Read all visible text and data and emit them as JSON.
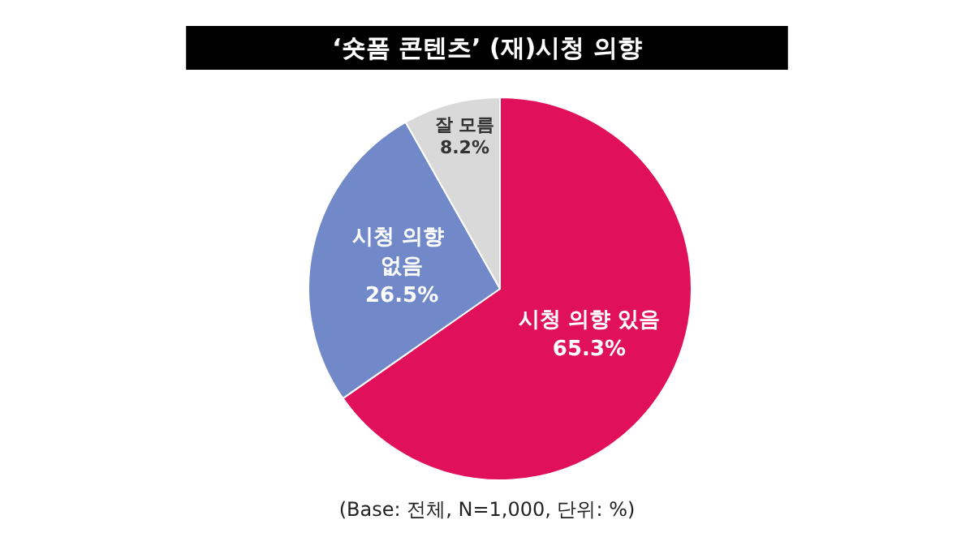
{
  "chart_data": {
    "type": "pie",
    "title": "‘숏폼 콘텐츠’ (재)시청 의향",
    "categories": [
      "시청 의향 있음",
      "시청 의향 없음",
      "잘 모름"
    ],
    "values": [
      65.3,
      26.5,
      8.2
    ],
    "colors": [
      "#e0105a",
      "#7189c8",
      "#d9d9d9"
    ],
    "value_labels": [
      "65.3%",
      "26.5%",
      "8.2%"
    ],
    "legend": false,
    "annotations": [
      "(Base: 전체, N=1,000, 단위: %)"
    ]
  }
}
